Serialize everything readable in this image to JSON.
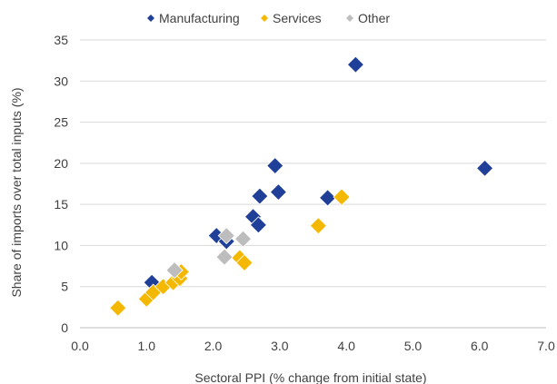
{
  "chart_data": {
    "type": "scatter",
    "xlabel": "Sectoral PPI (% change from initial state)",
    "ylabel": "Share of imports over total inputs (%)",
    "xlim": [
      0,
      7
    ],
    "ylim": [
      0,
      35
    ],
    "x_ticks": [
      "0.0",
      "1.0",
      "2.0",
      "3.0",
      "4.0",
      "5.0",
      "6.0",
      "7.0"
    ],
    "y_ticks": [
      "0",
      "5",
      "10",
      "15",
      "20",
      "25",
      "30",
      "35"
    ],
    "grid": "horizontal",
    "legend_position": "top",
    "series": [
      {
        "name": "Manufacturing",
        "color": "#1f3f99",
        "marker": "diamond",
        "points": [
          {
            "x": 1.08,
            "y": 5.5
          },
          {
            "x": 2.05,
            "y": 11.2
          },
          {
            "x": 2.2,
            "y": 10.5
          },
          {
            "x": 2.6,
            "y": 13.5
          },
          {
            "x": 2.68,
            "y": 12.5
          },
          {
            "x": 2.7,
            "y": 16.0
          },
          {
            "x": 2.93,
            "y": 19.7
          },
          {
            "x": 2.98,
            "y": 16.5
          },
          {
            "x": 3.72,
            "y": 15.8
          },
          {
            "x": 4.14,
            "y": 32.0
          },
          {
            "x": 6.08,
            "y": 19.4
          }
        ]
      },
      {
        "name": "Services",
        "color": "#f5b800",
        "marker": "diamond",
        "points": [
          {
            "x": 0.57,
            "y": 2.4
          },
          {
            "x": 1.0,
            "y": 3.5
          },
          {
            "x": 1.1,
            "y": 4.3
          },
          {
            "x": 1.25,
            "y": 5.0
          },
          {
            "x": 1.4,
            "y": 5.5
          },
          {
            "x": 1.5,
            "y": 6.0
          },
          {
            "x": 1.52,
            "y": 6.8
          },
          {
            "x": 2.4,
            "y": 8.5
          },
          {
            "x": 2.47,
            "y": 7.9
          },
          {
            "x": 3.58,
            "y": 12.4
          },
          {
            "x": 3.93,
            "y": 15.9
          }
        ]
      },
      {
        "name": "Other",
        "color": "#bdbdbd",
        "marker": "diamond",
        "points": [
          {
            "x": 1.42,
            "y": 7.0
          },
          {
            "x": 2.17,
            "y": 8.6
          },
          {
            "x": 2.2,
            "y": 11.2
          },
          {
            "x": 2.45,
            "y": 10.8
          }
        ]
      }
    ]
  }
}
